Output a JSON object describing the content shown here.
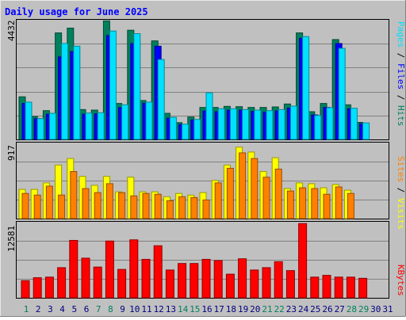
{
  "chart_data": [
    {
      "type": "bar",
      "title": "Daily usage for June 2025",
      "categories": [
        "1",
        "2",
        "3",
        "4",
        "5",
        "6",
        "7",
        "8",
        "9",
        "10",
        "11",
        "12",
        "13",
        "14",
        "15",
        "16",
        "17",
        "18",
        "19",
        "20",
        "21",
        "22",
        "23",
        "24",
        "25",
        "26",
        "27",
        "28",
        "29",
        "30",
        "31"
      ],
      "weekend_days": [
        "1",
        "7",
        "8",
        "14",
        "15",
        "21",
        "22",
        "28",
        "29"
      ],
      "ymax_label": "4432",
      "ylim": [
        0,
        4432
      ],
      "series": [
        {
          "name": "Hits",
          "color": "#00805c",
          "values": [
            1600,
            860,
            1080,
            4000,
            4180,
            1120,
            1100,
            4450,
            1350,
            4100,
            1460,
            3700,
            980,
            630,
            840,
            1200,
            1200,
            1240,
            1230,
            1200,
            1200,
            1220,
            1330,
            4000,
            1040,
            1350,
            3750,
            1300,
            640,
            null,
            null
          ]
        },
        {
          "name": "Files",
          "color": "#0000ff",
          "values": [
            1350,
            780,
            950,
            3100,
            3300,
            950,
            960,
            3900,
            1200,
            3600,
            1360,
            3500,
            800,
            560,
            730,
            1070,
            1040,
            1100,
            1100,
            1050,
            1020,
            1070,
            1180,
            3800,
            920,
            1200,
            3600,
            1150,
            590,
            null,
            null
          ]
        },
        {
          "name": "Pages",
          "color": "#00e0ff",
          "values": [
            1400,
            780,
            980,
            3600,
            3500,
            990,
            1000,
            4070,
            1300,
            3970,
            1400,
            3000,
            830,
            570,
            750,
            1750,
            1150,
            1150,
            1120,
            1100,
            1080,
            1120,
            1250,
            3860,
            900,
            1190,
            3420,
            1170,
            620,
            null,
            null
          ]
        }
      ]
    },
    {
      "type": "bar",
      "categories": [
        "1",
        "2",
        "3",
        "4",
        "5",
        "6",
        "7",
        "8",
        "9",
        "10",
        "11",
        "12",
        "13",
        "14",
        "15",
        "16",
        "17",
        "18",
        "19",
        "20",
        "21",
        "22",
        "23",
        "24",
        "25",
        "26",
        "27",
        "28",
        "29",
        "30",
        "31"
      ],
      "ymax_label": "917",
      "ylim": [
        0,
        917
      ],
      "series": [
        {
          "name": "Visits",
          "color": "#ffff00",
          "values": [
            360,
            360,
            440,
            660,
            740,
            520,
            410,
            520,
            330,
            510,
            330,
            330,
            270,
            310,
            290,
            320,
            470,
            660,
            880,
            820,
            580,
            750,
            370,
            440,
            430,
            380,
            420,
            350,
            0,
            null,
            null
          ]
        },
        {
          "name": "Sites",
          "color": "#ff8000",
          "values": [
            310,
            290,
            400,
            290,
            580,
            370,
            320,
            430,
            320,
            280,
            310,
            300,
            220,
            270,
            260,
            230,
            440,
            620,
            810,
            740,
            510,
            610,
            340,
            380,
            370,
            300,
            390,
            310,
            0,
            null,
            null
          ]
        }
      ]
    },
    {
      "type": "bar",
      "categories": [
        "1",
        "2",
        "3",
        "4",
        "5",
        "6",
        "7",
        "8",
        "9",
        "10",
        "11",
        "12",
        "13",
        "14",
        "15",
        "16",
        "17",
        "18",
        "19",
        "20",
        "21",
        "22",
        "23",
        "24",
        "25",
        "26",
        "27",
        "28",
        "29",
        "30",
        "31"
      ],
      "ymax_label": "12581",
      "ylim": [
        0,
        12581
      ],
      "series": [
        {
          "name": "KBytes",
          "color": "#ff0000",
          "values": [
            2900,
            3400,
            3500,
            5100,
            9700,
            6700,
            5200,
            9600,
            4800,
            9800,
            6500,
            8800,
            4700,
            5800,
            5800,
            6500,
            6300,
            4000,
            6600,
            4700,
            5100,
            6100,
            4600,
            12550,
            3500,
            3800,
            3500,
            3500,
            3300,
            null,
            null
          ]
        }
      ]
    }
  ],
  "colors": {
    "background": "#c0c0c0",
    "title": "#0000ff",
    "weekend_label": "#00805c",
    "weekday_label": "#000080"
  }
}
